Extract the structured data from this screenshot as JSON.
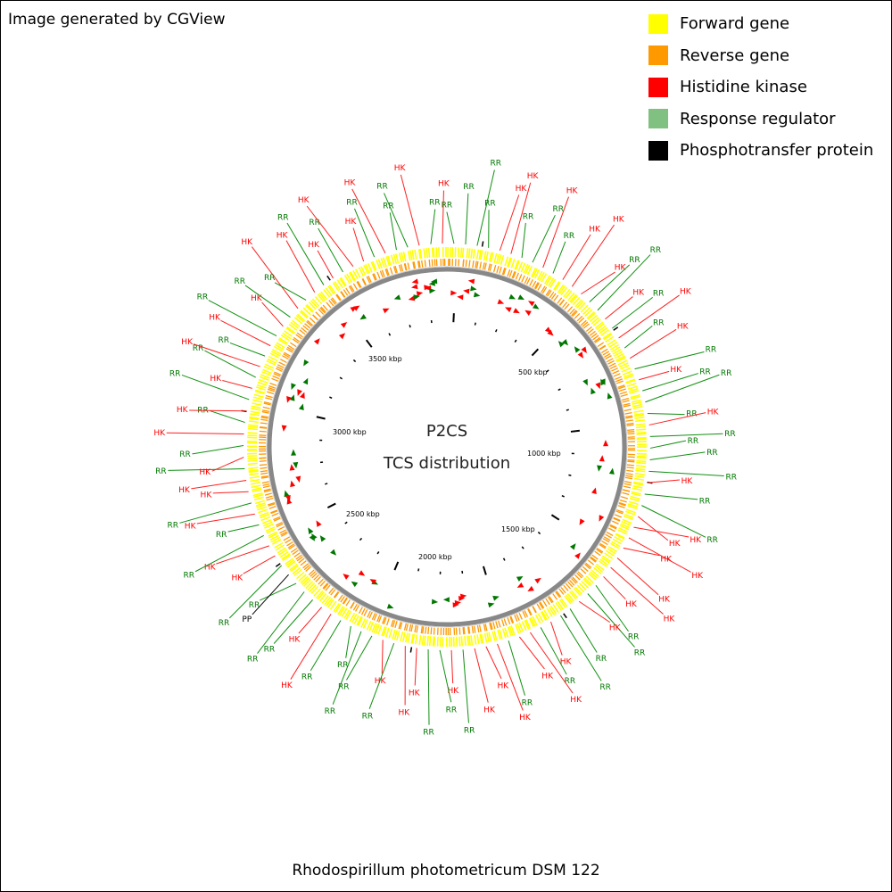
{
  "credit": "Image generated by CGView",
  "legend": [
    {
      "label": "Forward gene",
      "color": "#ffff00"
    },
    {
      "label": "Reverse gene",
      "color": "#ff9900"
    },
    {
      "label": "Histidine kinase",
      "color": "#ff0000"
    },
    {
      "label": "Response regulator",
      "color": "#80c080"
    },
    {
      "label": "Phosphotransfer protein",
      "color": "#000000"
    }
  ],
  "center": {
    "line1": "P2CS",
    "line2": "TCS distribution"
  },
  "organism": "Rhodospirillum photometricum DSM 122",
  "ticks": [
    "500 kbp",
    "1000 kbp",
    "1500 kbp",
    "2000 kbp",
    "2500 kbp",
    "3000 kbp",
    "3500 kbp"
  ],
  "feature_labels": [
    "RR",
    "RR",
    "RR",
    "RR",
    "HK",
    "HK",
    "RR",
    "RR",
    "HK",
    "RR",
    "HK",
    "HK",
    "HK",
    "RR",
    "RR",
    "HK",
    "RR",
    "HK",
    "RR",
    "HK",
    "RR",
    "HK",
    "RR",
    "RR",
    "RR",
    "HK",
    "RR",
    "RR",
    "RR",
    "RR",
    "HK",
    "RR",
    "RR",
    "HK",
    "HK",
    "HK",
    "HK",
    "HK",
    "HK",
    "HK",
    "RR",
    "RR",
    "HK",
    "RR",
    "RR",
    "HK",
    "RR",
    "HK",
    "HK",
    "RR",
    "HK",
    "HK",
    "HK",
    "RR",
    "HK",
    "RR",
    "RR",
    "HK",
    "HK",
    "RR",
    "HK",
    "RR",
    "RR",
    "RR",
    "RR",
    "HK",
    "HK",
    "RR",
    "RR",
    "RR",
    "PP",
    "RR",
    "HK",
    "HK",
    "RR",
    "RR",
    "HK",
    "RR",
    "HK",
    "HK",
    "RR",
    "HK",
    "RR",
    "HK",
    "RR",
    "HK",
    "RR",
    "HK",
    "RR",
    "HK",
    "RR",
    "HK",
    "RR",
    "HK",
    "RR",
    "HK",
    "RR",
    "HK",
    "RR",
    "HK",
    "RR",
    "HK",
    "HK",
    "RR",
    "HK",
    "RR",
    "RR",
    "HK",
    "RR",
    "HK"
  ],
  "colors": {
    "hk": "#ff0000",
    "rr": "#007700",
    "pp": "#000000",
    "hk_line": "#ff2020",
    "rr_line": "#109010",
    "backbone": "#888888"
  }
}
